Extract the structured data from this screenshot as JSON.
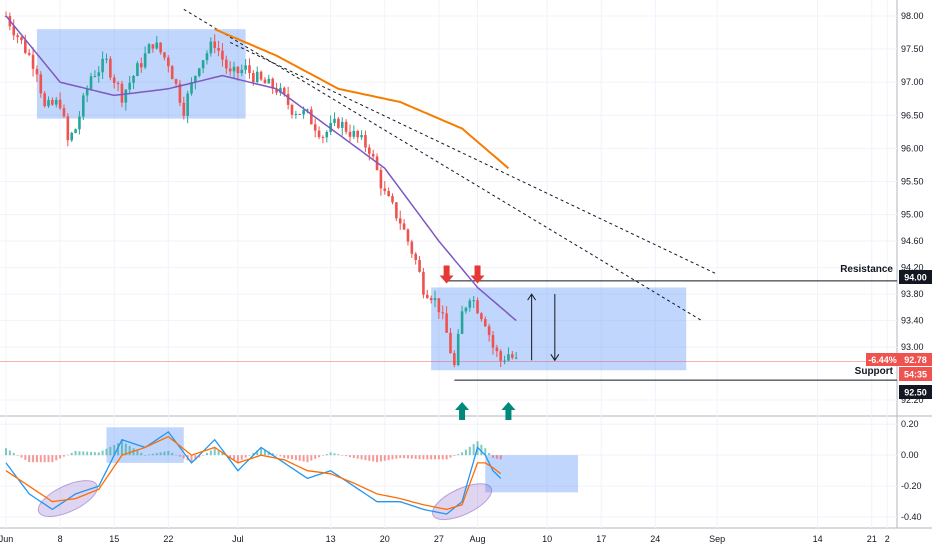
{
  "chart_data": [
    {
      "type": "candlestick",
      "colors": {
        "up": "#26a69a",
        "down": "#ef5350",
        "ma_short": "#7e57c2",
        "ma_long": "#f57c00",
        "box": "#3d7ef5",
        "marker_red": "#e53935",
        "marker_green": "#00897b",
        "price_line": "#ef5350"
      },
      "x_axis": {
        "ticks": [
          {
            "label": "Jun",
            "day": 1
          },
          {
            "label": "8",
            "day": 8
          },
          {
            "label": "15",
            "day": 15
          },
          {
            "label": "22",
            "day": 22
          },
          {
            "label": "Jul",
            "day": 31
          },
          {
            "label": "13",
            "day": 43
          },
          {
            "label": "20",
            "day": 50
          },
          {
            "label": "27",
            "day": 57
          },
          {
            "label": "Aug",
            "day": 62
          },
          {
            "label": "10",
            "day": 71
          },
          {
            "label": "17",
            "day": 78
          },
          {
            "label": "24",
            "day": 85
          },
          {
            "label": "Sep",
            "day": 93
          },
          {
            "label": "14",
            "day": 106
          },
          {
            "label": "21",
            "day": 113
          },
          {
            "label": "2",
            "day": 115
          }
        ]
      },
      "y_axis": {
        "range": [
          92.08,
          98.12
        ],
        "ticks": [
          "98.00",
          "97.50",
          "97.00",
          "96.50",
          "96.00",
          "95.50",
          "95.00",
          "94.60",
          "94.20",
          "93.80",
          "93.40",
          "93.00",
          "92.20"
        ]
      },
      "levels": {
        "resistance": {
          "label": "Resistance",
          "value": 94.0,
          "badge": "94.00"
        },
        "support": {
          "label": "Support",
          "value": 92.5,
          "badge": "92.50"
        }
      },
      "last_price": {
        "value": 92.78,
        "badge": "92.78",
        "change": "-6.44%",
        "countdown": "54:35"
      },
      "ohlc_anchors": [
        {
          "day": 1,
          "close": 98.0
        },
        {
          "day": 3,
          "close": 97.6
        },
        {
          "day": 5,
          "close": 97.2
        },
        {
          "day": 6,
          "close": 96.6
        },
        {
          "day": 8,
          "close": 96.7
        },
        {
          "day": 9,
          "close": 96.1
        },
        {
          "day": 10,
          "close": 96.3
        },
        {
          "day": 12,
          "close": 97.1
        },
        {
          "day": 14,
          "close": 97.3
        },
        {
          "day": 16,
          "close": 96.8
        },
        {
          "day": 18,
          "close": 97.2
        },
        {
          "day": 20,
          "close": 97.6
        },
        {
          "day": 22,
          "close": 97.3
        },
        {
          "day": 24,
          "close": 96.6
        },
        {
          "day": 26,
          "close": 97.3
        },
        {
          "day": 28,
          "close": 97.6
        },
        {
          "day": 30,
          "close": 97.1
        },
        {
          "day": 32,
          "close": 97.2
        },
        {
          "day": 34,
          "close": 97.0
        },
        {
          "day": 36,
          "close": 96.9
        },
        {
          "day": 38,
          "close": 96.6
        },
        {
          "day": 40,
          "close": 96.5
        },
        {
          "day": 42,
          "close": 96.2
        },
        {
          "day": 44,
          "close": 96.4
        },
        {
          "day": 46,
          "close": 96.2
        },
        {
          "day": 48,
          "close": 96.0
        },
        {
          "day": 50,
          "close": 95.3
        },
        {
          "day": 52,
          "close": 94.9
        },
        {
          "day": 54,
          "close": 94.3
        },
        {
          "day": 55,
          "close": 93.9
        },
        {
          "day": 56,
          "close": 93.8
        },
        {
          "day": 57,
          "close": 93.6
        },
        {
          "day": 58,
          "close": 93.2
        },
        {
          "day": 59,
          "close": 92.7
        },
        {
          "day": 60,
          "close": 93.5
        },
        {
          "day": 61,
          "close": 93.8
        },
        {
          "day": 62,
          "close": 93.6
        },
        {
          "day": 63,
          "close": 93.4
        },
        {
          "day": 64,
          "close": 93.0
        },
        {
          "day": 65,
          "close": 92.8
        },
        {
          "day": 66,
          "close": 92.9
        },
        {
          "day": 67,
          "close": 92.78
        }
      ],
      "ma_short": {
        "days": [
          1,
          8,
          15,
          22,
          29,
          36,
          43,
          50,
          57,
          62,
          67
        ],
        "values": [
          98.0,
          97.0,
          96.8,
          96.9,
          97.1,
          96.9,
          96.3,
          95.7,
          94.6,
          93.9,
          93.4
        ]
      },
      "ma_long": {
        "days": [
          28,
          36,
          44,
          52,
          60,
          66
        ],
        "values": [
          97.8,
          97.4,
          96.9,
          96.7,
          96.3,
          95.7
        ]
      },
      "trendlines": [
        {
          "from": {
            "day": 24,
            "value": 98.1
          },
          "to": {
            "day": 91,
            "value": 93.4
          }
        },
        {
          "from": {
            "day": 30,
            "value": 97.6
          },
          "to": {
            "day": 93,
            "value": 94.1
          }
        }
      ],
      "boxes": [
        {
          "from": {
            "day": 5,
            "value": 97.8
          },
          "to": {
            "day": 32,
            "value": 96.45
          }
        },
        {
          "from": {
            "day": 56,
            "value": 93.9
          },
          "to": {
            "day": 89,
            "value": 92.65
          }
        }
      ],
      "arrows": [
        {
          "day": 58,
          "value": 93.9,
          "direction": "down",
          "color": "red"
        },
        {
          "day": 62,
          "value": 93.9,
          "direction": "down",
          "color": "red"
        },
        {
          "day": 60,
          "value": 92.2,
          "direction": "up",
          "color": "green"
        },
        {
          "day": 66,
          "value": 92.2,
          "direction": "up",
          "color": "green"
        }
      ],
      "range_arrows": [
        {
          "day": 69,
          "from": 92.8,
          "to": 93.8,
          "direction": "up"
        },
        {
          "day": 72,
          "from": 93.8,
          "to": 92.8,
          "direction": "down"
        }
      ]
    },
    {
      "type": "histogram+lines",
      "y_axis": {
        "range": [
          -0.47,
          0.24
        ],
        "ticks": [
          "0.20",
          "0.00",
          "-0.20",
          "-0.40"
        ]
      },
      "macd": {
        "days": [
          1,
          4,
          7,
          10,
          13,
          16,
          19,
          22,
          25,
          28,
          31,
          34,
          37,
          40,
          43,
          46,
          49,
          52,
          55,
          58,
          60,
          62,
          63,
          64,
          65
        ],
        "values": [
          -0.05,
          -0.25,
          -0.35,
          -0.25,
          -0.2,
          0.1,
          0.05,
          0.15,
          -0.05,
          0.1,
          -0.1,
          0.05,
          -0.05,
          -0.15,
          -0.1,
          -0.2,
          -0.3,
          -0.3,
          -0.35,
          -0.38,
          -0.3,
          0.05,
          0.0,
          -0.1,
          -0.15
        ]
      },
      "signal": {
        "days": [
          1,
          4,
          7,
          10,
          13,
          16,
          19,
          22,
          25,
          28,
          31,
          34,
          37,
          40,
          43,
          46,
          49,
          52,
          55,
          58,
          60,
          62,
          63,
          64,
          65
        ],
        "values": [
          -0.1,
          -0.2,
          -0.3,
          -0.28,
          -0.22,
          0.0,
          0.05,
          0.12,
          0.0,
          0.05,
          -0.05,
          0.0,
          -0.03,
          -0.1,
          -0.12,
          -0.18,
          -0.25,
          -0.28,
          -0.32,
          -0.35,
          -0.32,
          -0.05,
          -0.05,
          -0.08,
          -0.12
        ]
      },
      "boxes": [
        {
          "from": {
            "day": 14,
            "value": 0.18
          },
          "to": {
            "day": 24,
            "value": -0.05
          }
        },
        {
          "from": {
            "day": 63,
            "value": 0.0
          },
          "to": {
            "day": 75,
            "value": -0.24
          }
        }
      ],
      "ellipses": [
        {
          "day": 9,
          "value": -0.28
        },
        {
          "day": 60,
          "value": -0.3
        }
      ]
    }
  ]
}
